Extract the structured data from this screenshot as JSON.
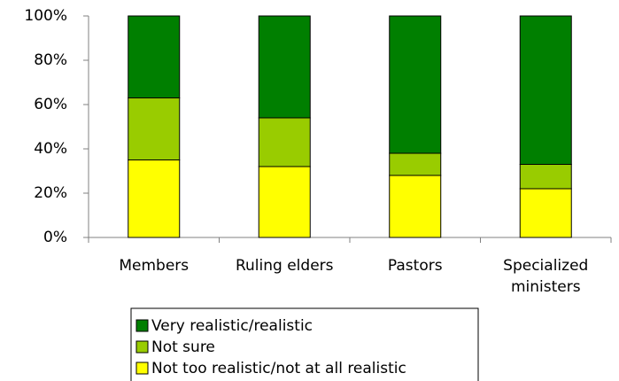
{
  "chart_data": {
    "type": "stacked_bar",
    "categories": [
      "Members",
      "Ruling elders",
      "Pastors",
      "Specialized ministers"
    ],
    "series": [
      {
        "name": "Very realistic/realistic",
        "color": "#007f00",
        "values": [
          37,
          46,
          62,
          67
        ]
      },
      {
        "name": "Not sure",
        "color": "#99cc00",
        "values": [
          28,
          22,
          10,
          11
        ]
      },
      {
        "name": "Not too realistic/not at all realistic",
        "color": "#ffff00",
        "values": [
          35,
          32,
          28,
          22
        ]
      }
    ],
    "ylim": [
      0,
      100
    ],
    "yticks": [
      {
        "value": 0,
        "label": "0%"
      },
      {
        "value": 20,
        "label": "20%"
      },
      {
        "value": 40,
        "label": "40%"
      },
      {
        "value": 60,
        "label": "60%"
      },
      {
        "value": 80,
        "label": "80%"
      },
      {
        "value": 100,
        "label": "100%"
      }
    ],
    "legend": "bottom"
  }
}
